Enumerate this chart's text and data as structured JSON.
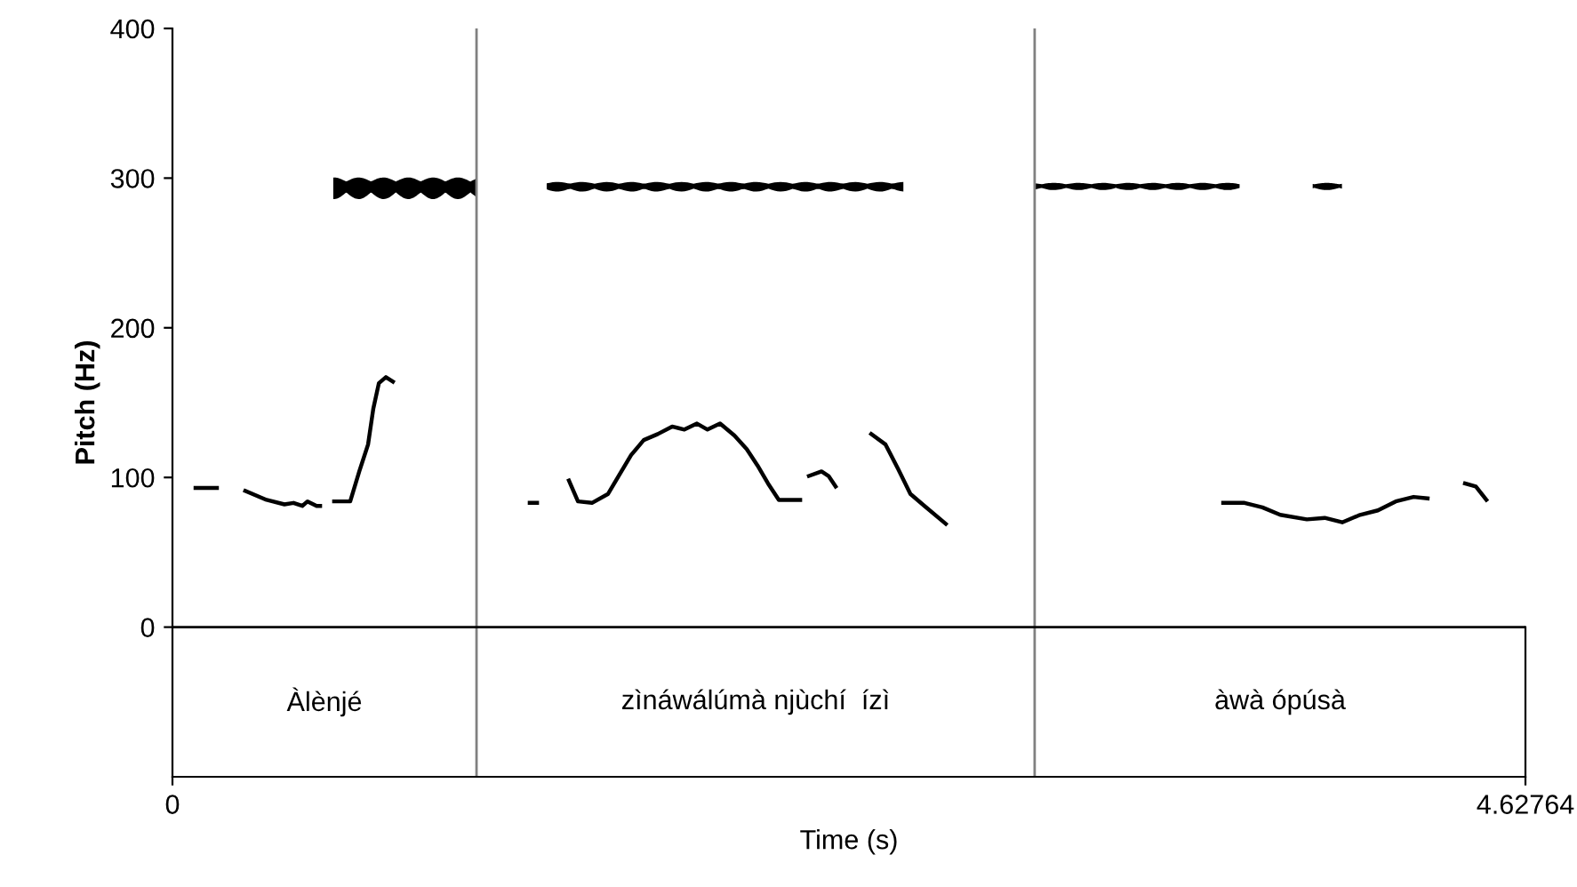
{
  "chart_data": {
    "type": "line",
    "xlabel": "Time (s)",
    "ylabel": "Pitch (Hz)",
    "xlim": [
      0,
      4.62764
    ],
    "xticks": [
      0,
      4.62764
    ],
    "ylim": [
      -100,
      400
    ],
    "yticks": [
      0,
      100,
      200,
      300,
      400
    ],
    "grid": false,
    "marker": "none",
    "line_style": "solid",
    "series": [
      {
        "color": "#000000",
        "x": [
          0.079,
          0.152,
          null,
          0.249,
          0.322,
          0.383,
          0.414,
          0.444,
          0.462,
          0.493,
          0.505,
          null,
          0.553,
          0.608,
          0.639,
          0.669,
          0.687,
          0.706,
          0.73,
          0.754,
          null,
          1.222,
          1.247,
          null,
          1.356,
          1.387,
          1.435,
          1.49,
          1.526,
          1.569,
          1.612,
          1.66,
          1.709,
          1.751,
          1.794,
          1.83,
          1.873,
          1.922,
          1.964,
          2.001,
          2.037,
          2.074,
          2.147,
          null,
          2.177,
          2.22,
          2.244,
          2.268,
          null,
          2.39,
          2.439,
          2.481,
          2.524,
          2.572,
          2.645,
          null,
          3.594,
          3.667,
          3.728,
          3.789,
          3.88,
          3.941,
          4.001,
          4.062,
          4.123,
          4.184,
          4.245,
          4.293,
          null,
          4.421,
          4.458,
          4.494
        ],
        "values": [
          93,
          93,
          null,
          91,
          85,
          82,
          83,
          81,
          84,
          81,
          81,
          null,
          84,
          84,
          104,
          122,
          146,
          163,
          167,
          164,
          null,
          83,
          83,
          null,
          98,
          84,
          83,
          89,
          101,
          115,
          125,
          129,
          134,
          132,
          136,
          132,
          136,
          128,
          119,
          108,
          96,
          85,
          85,
          null,
          101,
          104,
          101,
          94,
          null,
          129,
          122,
          106,
          89,
          81,
          69,
          null,
          83,
          83,
          80,
          75,
          72,
          73,
          70,
          75,
          78,
          84,
          87,
          86,
          null,
          96,
          94,
          85
        ]
      }
    ],
    "ref_lines": [
      {
        "axis": "x",
        "value": 1.04,
        "color": "#808080"
      },
      {
        "axis": "x",
        "value": 2.949,
        "color": "#808080"
      },
      {
        "axis": "y",
        "value": 0,
        "color": "#000000"
      }
    ],
    "annotations": [
      "Àlènjé",
      "zìnáwálúmà njùchí  ízì",
      "àwà ópúsà"
    ]
  }
}
